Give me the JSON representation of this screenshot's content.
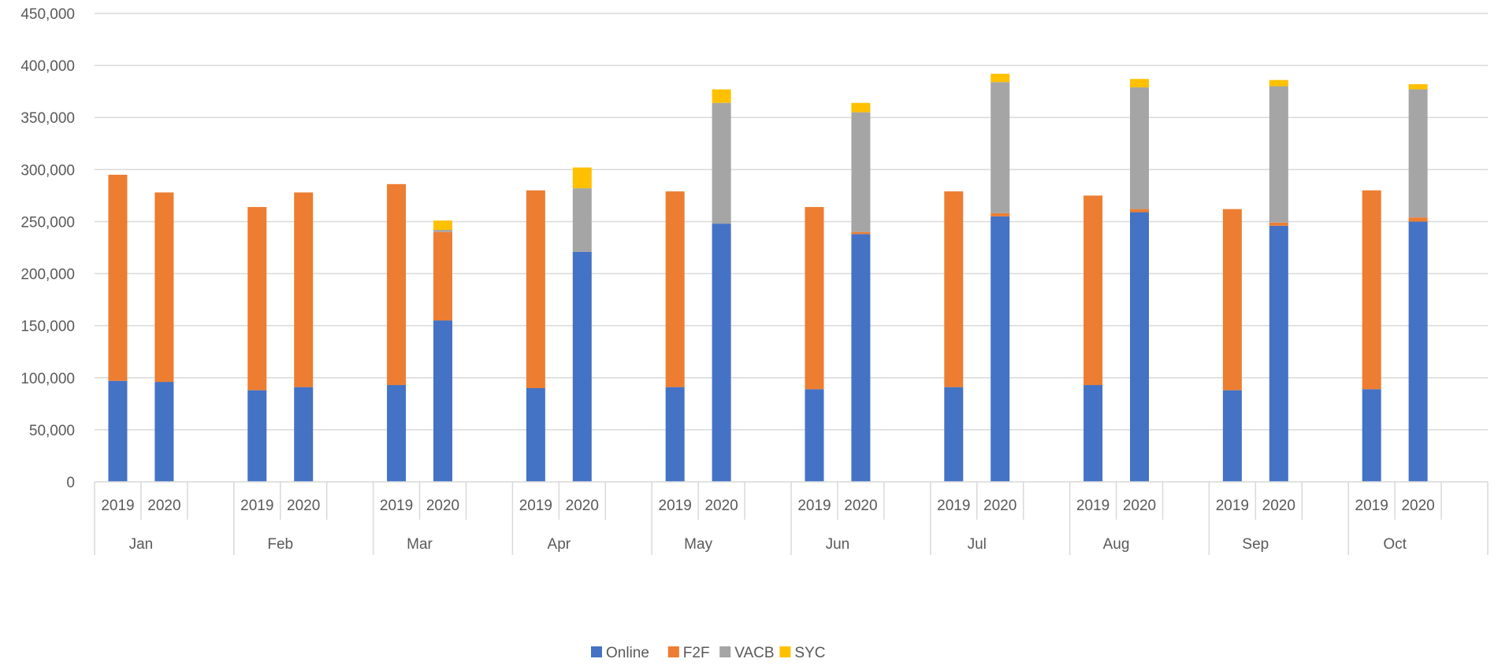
{
  "chart_data": {
    "type": "bar",
    "stacked": true,
    "months": [
      "Jan",
      "Feb",
      "Mar",
      "Apr",
      "May",
      "Jun",
      "Jul",
      "Aug",
      "Sep",
      "Oct"
    ],
    "years": [
      "2019",
      "2020"
    ],
    "ylim": [
      0,
      450000
    ],
    "yticks": [
      0,
      50000,
      100000,
      150000,
      200000,
      250000,
      300000,
      350000,
      400000,
      450000
    ],
    "ytick_labels": [
      "0",
      "50,000",
      "100,000",
      "150,000",
      "200,000",
      "250,000",
      "300,000",
      "350,000",
      "400,000",
      "450,000"
    ],
    "grid": true,
    "legend_position": "bottom",
    "series": [
      {
        "name": "Online",
        "color": "#4472C4",
        "values": [
          97000,
          96000,
          88000,
          91000,
          93000,
          155000,
          90000,
          221000,
          91000,
          248000,
          89000,
          238000,
          91000,
          255000,
          93000,
          259000,
          88000,
          246000,
          89000,
          250000
        ]
      },
      {
        "name": "F2F",
        "color": "#ED7D31",
        "values": [
          198000,
          182000,
          176000,
          187000,
          193000,
          85000,
          190000,
          0,
          188000,
          0,
          175000,
          2000,
          188000,
          3000,
          182000,
          3000,
          174000,
          3000,
          191000,
          4000
        ]
      },
      {
        "name": "VACB",
        "color": "#A5A5A5",
        "values": [
          0,
          0,
          0,
          0,
          0,
          2000,
          0,
          61000,
          0,
          116000,
          0,
          115000,
          0,
          126000,
          0,
          117000,
          0,
          131000,
          0,
          123000
        ]
      },
      {
        "name": "SYC",
        "color": "#FFC000",
        "values": [
          0,
          0,
          0,
          0,
          0,
          9000,
          0,
          20000,
          0,
          13000,
          0,
          9000,
          0,
          8000,
          0,
          8000,
          0,
          6000,
          0,
          5000
        ]
      }
    ]
  }
}
